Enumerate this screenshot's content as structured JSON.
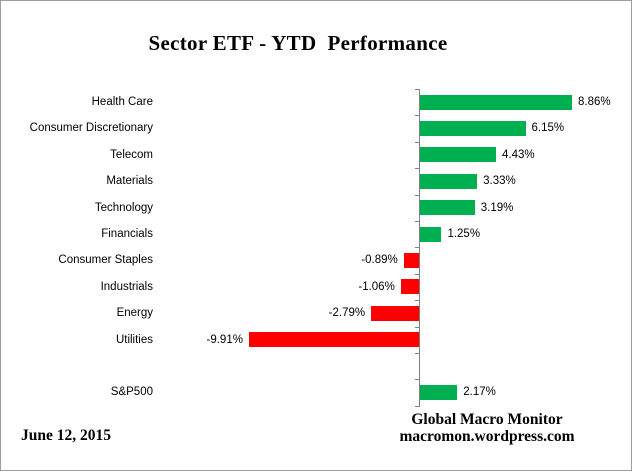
{
  "title": "Sector ETF - YTD  Performance",
  "footer": {
    "date": "June 12, 2015",
    "source_name": "Global Macro Monitor",
    "source_url": "macromon.wordpress.com"
  },
  "chart_data": {
    "type": "bar",
    "orientation": "horizontal",
    "title": "Sector ETF - YTD  Performance",
    "categories": [
      "Health Care",
      "Consumer Discretionary",
      "Telecom",
      "Materials",
      "Technology",
      "Financials",
      "Consumer Staples",
      "Industrials",
      "Energy",
      "Utilities",
      "",
      "S&P500"
    ],
    "values": [
      8.86,
      6.15,
      4.43,
      3.33,
      3.19,
      1.25,
      -0.89,
      -1.06,
      -2.79,
      -9.91,
      null,
      2.17
    ],
    "value_labels": [
      "8.86%",
      "6.15%",
      "4.43%",
      "3.33%",
      "3.19%",
      "1.25%",
      "-0.89%",
      "-1.06%",
      "-2.79%",
      "-9.91%",
      "",
      "2.17%"
    ],
    "unit": "%",
    "xlim": [
      -9.91,
      8.86
    ],
    "grid": false,
    "legend": false,
    "colors": {
      "positive": "#00B050",
      "negative": "#FF0000",
      "axis": "#808080",
      "text": "#000000"
    }
  }
}
